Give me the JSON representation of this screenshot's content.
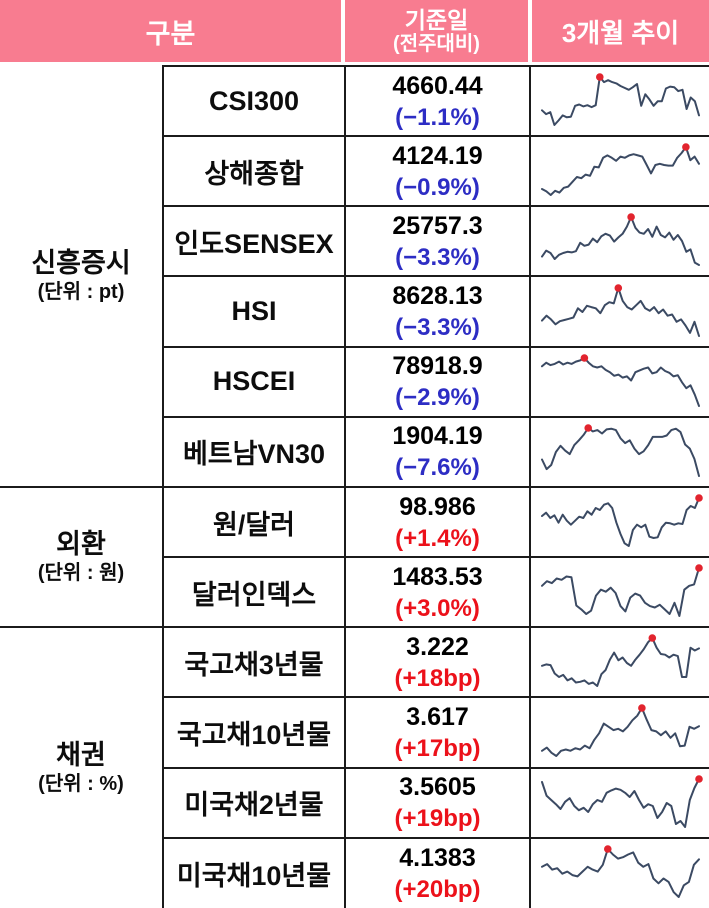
{
  "colors": {
    "header_bg": "#F87C90",
    "negative_change": "#2D2DC4",
    "positive_change": "#EC111A",
    "spark_line": "#3B4A63",
    "spark_dot": "#E2242E",
    "grid_border": "#1b1b1b",
    "header_text": "#ffffff"
  },
  "chart_data": {
    "type": "table",
    "columns": {
      "category": "구분",
      "base": "기준일",
      "base_sub": "(전주대비)",
      "trend": "3개월 추이"
    },
    "sparkline_note": "3-month trend lines, red dot marks the peak value",
    "groups": [
      {
        "label": "신흥증시",
        "unit": "(단위 : pt)",
        "rows": [
          {
            "name": "CSI300",
            "value": "4660.44",
            "change": "(−1.1%)",
            "direction": "down",
            "spark": [
              38,
              32,
              35,
              15,
              22,
              30,
              27,
              28,
              45,
              47,
              44,
              46,
              43,
              46,
              90,
              82,
              85,
              82,
              80,
              76,
              73,
              70,
              74,
              79,
              45,
              63,
              55,
              45,
              52,
              52,
              72,
              75,
              74,
              68,
              70,
              40,
              58,
              52,
              30
            ],
            "dot_index": 14
          },
          {
            "name": "상해종합",
            "value": "4124.19",
            "change": "(−0.9%)",
            "direction": "down",
            "spark": [
              18,
              14,
              8,
              15,
              12,
              20,
              22,
              30,
              38,
              36,
              42,
              40,
              55,
              54,
              70,
              74,
              70,
              65,
              72,
              70,
              74,
              76,
              74,
              72,
              58,
              44,
              58,
              60,
              58,
              57,
              57,
              70,
              78,
              88,
              66,
              72,
              60
            ],
            "dot_index": 33
          },
          {
            "name": "인도SENSEX",
            "value": "25757.3",
            "change": "(−3.3%)",
            "direction": "down",
            "spark": [
              22,
              32,
              28,
              18,
              25,
              28,
              30,
              29,
              31,
              45,
              40,
              42,
              52,
              46,
              56,
              60,
              57,
              47,
              54,
              60,
              72,
              88,
              70,
              62,
              60,
              68,
              55,
              72,
              58,
              54,
              62,
              50,
              58,
              48,
              30,
              34,
              12,
              8
            ],
            "dot_index": 21
          },
          {
            "name": "HSI",
            "value": "8628.13",
            "change": "(−3.3%)",
            "direction": "down",
            "spark": [
              30,
              38,
              32,
              24,
              29,
              31,
              33,
              35,
              50,
              44,
              54,
              52,
              50,
              42,
              55,
              60,
              58,
              83,
              62,
              52,
              48,
              55,
              62,
              50,
              46,
              52,
              42,
              48,
              38,
              40,
              28,
              32,
              22,
              10,
              28,
              5
            ],
            "dot_index": 17
          },
          {
            "name": "HSCEI",
            "value": "78918.9",
            "change": "(−2.9%)",
            "direction": "down",
            "spark": [
              72,
              78,
              74,
              76,
              80,
              75,
              78,
              76,
              80,
              82,
              86,
              78,
              72,
              70,
              72,
              66,
              62,
              56,
              58,
              53,
              55,
              48,
              62,
              65,
              68,
              70,
              60,
              62,
              70,
              64,
              61,
              55,
              57,
              45,
              35,
              40,
              24,
              5
            ],
            "dot_index": 10
          },
          {
            "name": "베트남VN30",
            "value": "1904.19",
            "change": "(−7.6%)",
            "direction": "down",
            "spark": [
              34,
              20,
              26,
              45,
              54,
              47,
              42,
              55,
              62,
              70,
              80,
              75,
              77,
              72,
              78,
              79,
              77,
              65,
              58,
              62,
              50,
              42,
              46,
              55,
              67,
              67,
              67,
              69,
              77,
              79,
              74,
              56,
              50,
              35,
              10
            ],
            "dot_index": 10
          }
        ]
      },
      {
        "label": "외환",
        "unit": "(단위 : 원)",
        "rows": [
          {
            "name": "원/달러",
            "value": "98.986",
            "change": "(+1.4%)",
            "direction": "up",
            "spark": [
              55,
              60,
              52,
              56,
              45,
              57,
              48,
              42,
              48,
              54,
              52,
              62,
              57,
              67,
              64,
              72,
              74,
              67,
              45,
              28,
              14,
              10,
              34,
              42,
              38,
              42,
              24,
              22,
              23,
              38,
              45,
              44,
              42,
              44,
              43,
              64,
              70,
              67,
              82
            ],
            "dot_index": 38
          },
          {
            "name": "달러인덱스",
            "value": "1483.53",
            "change": "(+3.0%)",
            "direction": "up",
            "spark": [
              60,
              67,
              64,
              71,
              69,
              74,
              73,
              30,
              24,
              17,
              22,
              45,
              54,
              51,
              57,
              49,
              29,
              21,
              42,
              48,
              45,
              34,
              29,
              27,
              31,
              24,
              17,
              34,
              14,
              54,
              60,
              62,
              87
            ],
            "dot_index": 32
          }
        ]
      },
      {
        "label": "채권",
        "unit": "(단위 : %)",
        "rows": [
          {
            "name": "국고채3년물",
            "value": "3.222",
            "change": "(+18bp)",
            "direction": "up",
            "spark": [
              46,
              48,
              47,
              35,
              30,
              33,
              25,
              28,
              22,
              23,
              25,
              20,
              22,
              17,
              34,
              40,
              55,
              65,
              54,
              58,
              50,
              46,
              55,
              62,
              70,
              80,
              86,
              72,
              63,
              62,
              58,
              62,
              60,
              30,
              30,
              72,
              68,
              71
            ],
            "dot_index": 26
          },
          {
            "name": "국고채10년물",
            "value": "3.617",
            "change": "(+17bp)",
            "direction": "up",
            "spark": [
              18,
              23,
              15,
              10,
              18,
              20,
              18,
              22,
              20,
              26,
              22,
              35,
              45,
              60,
              55,
              50,
              52,
              48,
              55,
              65,
              72,
              84,
              66,
              50,
              48,
              42,
              48,
              38,
              45,
              25,
              26,
              55,
              52,
              56
            ],
            "dot_index": 21
          },
          {
            "name": "미국채2년물",
            "value": "3.5605",
            "change": "(+19bp)",
            "direction": "up",
            "spark": [
              85,
              62,
              55,
              48,
              40,
              52,
              58,
              45,
              38,
              42,
              35,
              48,
              55,
              52,
              67,
              71,
              74,
              72,
              67,
              60,
              70,
              55,
              42,
              48,
              45,
              25,
              35,
              50,
              45,
              15,
              20,
              10,
              55,
              75,
              90
            ],
            "dot_index": 34
          },
          {
            "name": "미국채10년물",
            "value": "4.1383",
            "change": "(+20bp)",
            "direction": "up",
            "spark": [
              52,
              56,
              48,
              50,
              42,
              45,
              40,
              38,
              45,
              52,
              48,
              45,
              55,
              78,
              70,
              64,
              66,
              70,
              73,
              58,
              52,
              56,
              35,
              28,
              35,
              30,
              15,
              8,
              25,
              30,
              55,
              63
            ],
            "dot_index": 13
          }
        ]
      }
    ]
  }
}
